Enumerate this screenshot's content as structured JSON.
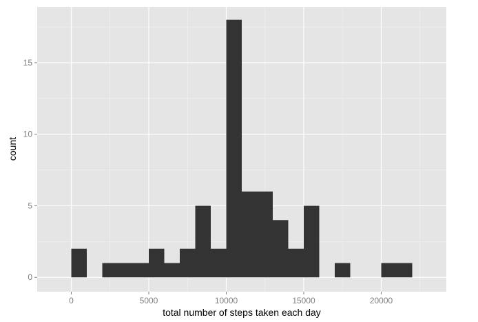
{
  "chart_data": {
    "type": "bar",
    "xlabel": "total number of steps taken each day",
    "ylabel": "count",
    "xlim": [
      -2200,
      24200
    ],
    "ylim": [
      -1,
      18.9
    ],
    "x_ticks": [
      0,
      5000,
      10000,
      15000,
      20000
    ],
    "x_tick_labels": [
      "0",
      "5000",
      "10000",
      "15000",
      "20000"
    ],
    "y_ticks": [
      0,
      5,
      10,
      15
    ],
    "y_tick_labels": [
      "0",
      "5",
      "10",
      "15"
    ],
    "bin_width": 1000,
    "bins": [
      {
        "start": 0,
        "end": 1000,
        "count": 2
      },
      {
        "start": 1000,
        "end": 2000,
        "count": 0
      },
      {
        "start": 2000,
        "end": 3000,
        "count": 1
      },
      {
        "start": 3000,
        "end": 4000,
        "count": 1
      },
      {
        "start": 4000,
        "end": 5000,
        "count": 1
      },
      {
        "start": 5000,
        "end": 6000,
        "count": 2
      },
      {
        "start": 6000,
        "end": 7000,
        "count": 1
      },
      {
        "start": 7000,
        "end": 8000,
        "count": 2
      },
      {
        "start": 8000,
        "end": 9000,
        "count": 5
      },
      {
        "start": 9000,
        "end": 10000,
        "count": 2
      },
      {
        "start": 10000,
        "end": 11000,
        "count": 18
      },
      {
        "start": 11000,
        "end": 12000,
        "count": 6
      },
      {
        "start": 12000,
        "end": 13000,
        "count": 6
      },
      {
        "start": 13000,
        "end": 14000,
        "count": 4
      },
      {
        "start": 14000,
        "end": 15000,
        "count": 2
      },
      {
        "start": 15000,
        "end": 16000,
        "count": 5
      },
      {
        "start": 16000,
        "end": 17000,
        "count": 0
      },
      {
        "start": 17000,
        "end": 18000,
        "count": 1
      },
      {
        "start": 18000,
        "end": 19000,
        "count": 0
      },
      {
        "start": 19000,
        "end": 20000,
        "count": 0
      },
      {
        "start": 20000,
        "end": 21000,
        "count": 1
      },
      {
        "start": 21000,
        "end": 22000,
        "count": 1
      }
    ],
    "grid": true,
    "colors": {
      "bar_fill": "#333333",
      "panel_background": "#e5e5e5",
      "grid_major": "#ffffff",
      "grid_minor": "#f2f2f2",
      "tick_label": "#7f7f7f",
      "axis_title": "#000000"
    }
  }
}
